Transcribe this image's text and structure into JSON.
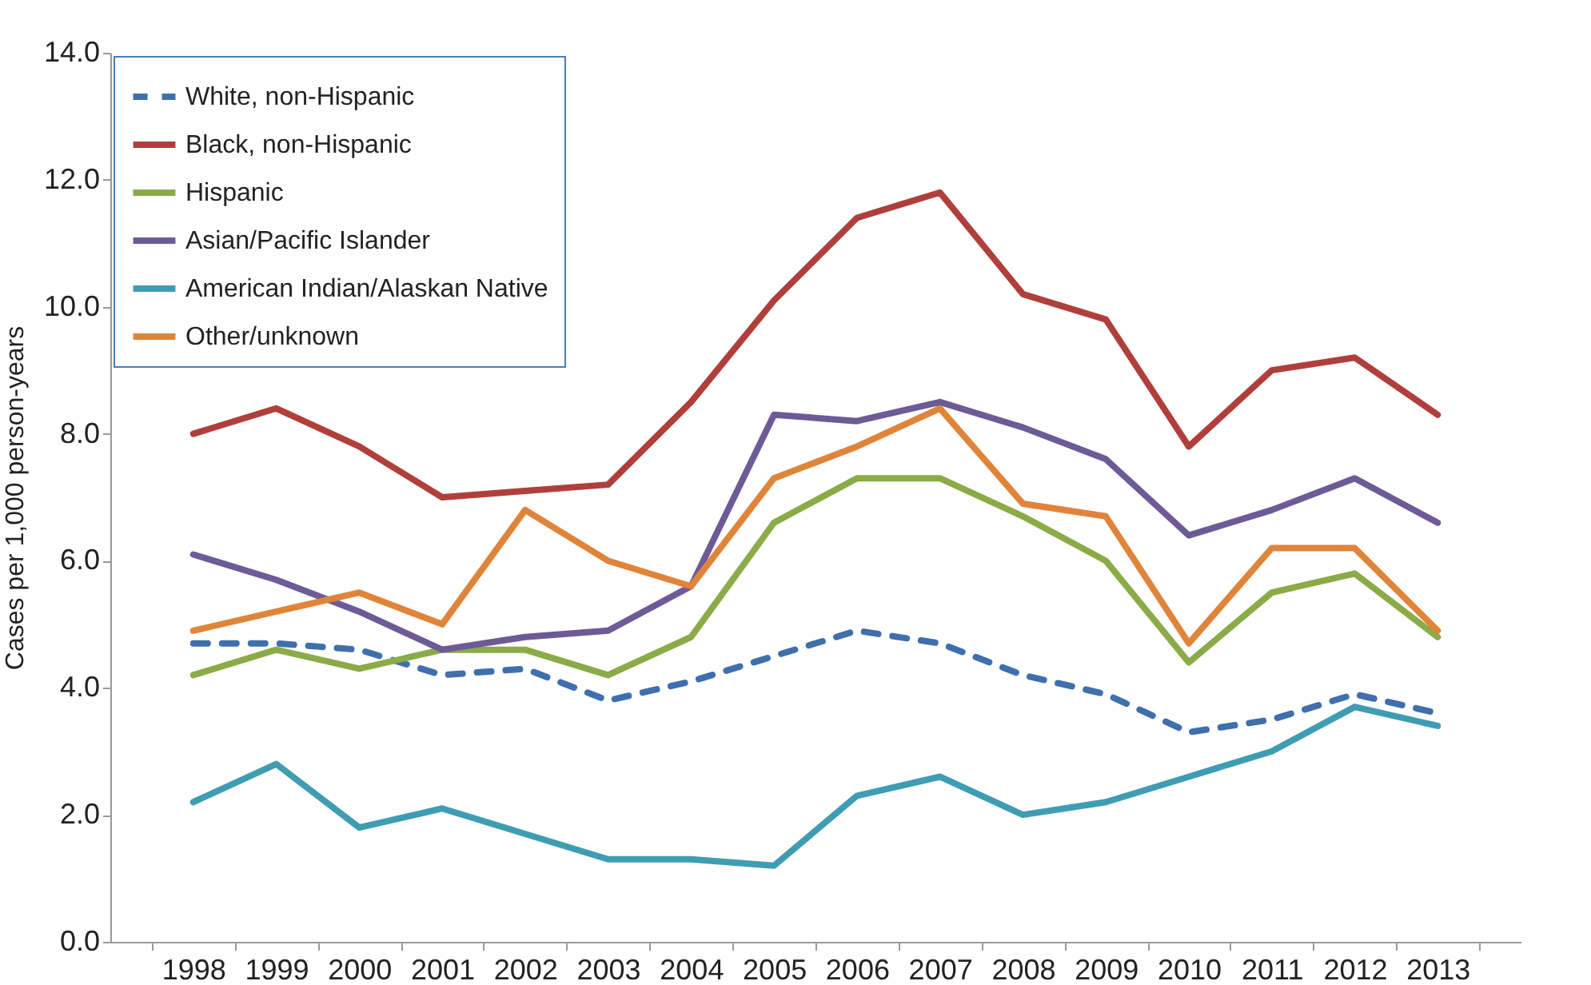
{
  "chart_data": {
    "type": "line",
    "ylabel": "Cases per 1,000 person-years",
    "categories": [
      "1998",
      "1999",
      "2000",
      "2001",
      "2002",
      "2003",
      "2004",
      "2005",
      "2006",
      "2007",
      "2008",
      "2009",
      "2010",
      "2011",
      "2012",
      "2013"
    ],
    "series": [
      {
        "name": "White, non-Hispanic",
        "color": "#3f6fad",
        "line_style": "dashed",
        "values": [
          4.7,
          4.7,
          4.6,
          4.2,
          4.3,
          3.8,
          4.1,
          4.5,
          4.9,
          4.7,
          4.2,
          3.9,
          3.3,
          3.5,
          3.9,
          3.6
        ]
      },
      {
        "name": "Black, non-Hispanic",
        "color": "#b03f3c",
        "line_style": "solid",
        "values": [
          8.0,
          8.4,
          7.8,
          7.0,
          7.1,
          7.2,
          8.5,
          10.1,
          11.4,
          11.8,
          10.2,
          9.8,
          7.8,
          9.0,
          9.2,
          8.3
        ]
      },
      {
        "name": "Hispanic",
        "color": "#8aab47",
        "line_style": "solid",
        "values": [
          4.2,
          4.6,
          4.3,
          4.6,
          4.6,
          4.2,
          4.8,
          6.6,
          7.3,
          7.3,
          6.7,
          6.0,
          4.4,
          5.5,
          5.8,
          4.8
        ]
      },
      {
        "name": "Asian/Pacific Islander",
        "color": "#6e5a96",
        "line_style": "solid",
        "values": [
          6.1,
          5.7,
          5.2,
          4.6,
          4.8,
          4.9,
          5.6,
          8.3,
          8.2,
          8.5,
          8.1,
          7.6,
          6.4,
          6.8,
          7.3,
          6.6
        ]
      },
      {
        "name": "American Indian/Alaskan Native",
        "color": "#3f9db3",
        "line_style": "solid",
        "values": [
          2.2,
          2.8,
          1.8,
          2.1,
          1.7,
          1.3,
          1.3,
          1.2,
          2.3,
          2.6,
          2.0,
          2.2,
          2.6,
          3.0,
          3.7,
          3.4
        ]
      },
      {
        "name": "Other/unknown",
        "color": "#e0843a",
        "line_style": "solid",
        "values": [
          4.9,
          5.2,
          5.5,
          5.0,
          6.8,
          6.0,
          5.6,
          7.3,
          7.8,
          8.4,
          6.9,
          6.7,
          4.7,
          6.2,
          6.2,
          4.9
        ]
      }
    ],
    "ylim": [
      0,
      14
    ],
    "yticks": [
      {
        "value": 0,
        "label": "0.0"
      },
      {
        "value": 2,
        "label": "2.0"
      },
      {
        "value": 4,
        "label": "4.0"
      },
      {
        "value": 6,
        "label": "6.0"
      },
      {
        "value": 8,
        "label": "8.0"
      },
      {
        "value": 10,
        "label": "10.0"
      },
      {
        "value": 12,
        "label": "12.0"
      },
      {
        "value": 14,
        "label": "14.0"
      }
    ],
    "grid": false,
    "legend": "top left",
    "marker": "none"
  }
}
